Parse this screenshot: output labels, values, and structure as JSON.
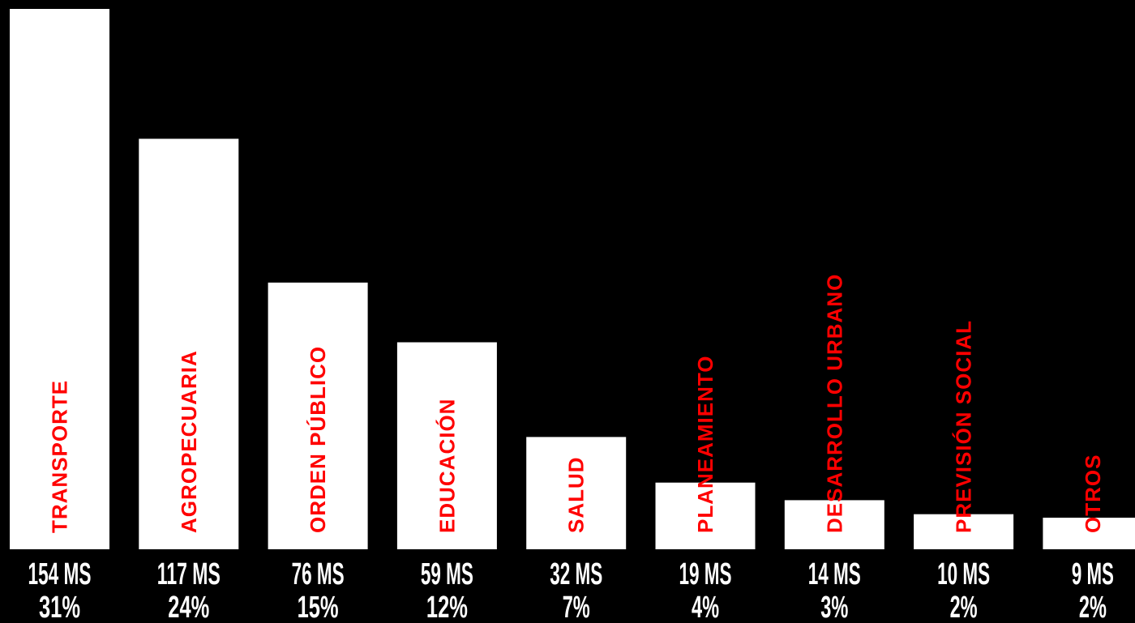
{
  "colors": {
    "background": "#000000",
    "bar": "#ffffff",
    "category_label": "#ff0000",
    "value_label": "#ffffff"
  },
  "chart_data": {
    "type": "bar",
    "title": "",
    "xlabel": "",
    "ylabel": "",
    "categories": [
      "TRANSPORTE",
      "AGROPECUARIA",
      "ORDEN PÚBLICO",
      "EDUCACIÓN",
      "SALUD",
      "PLANEAMIENTO",
      "DESARROLLO URBANO",
      "PREVISIÓN SOCIAL",
      "OTROS"
    ],
    "values": [
      154,
      117,
      76,
      59,
      32,
      19,
      14,
      10,
      9
    ],
    "value_labels": [
      "154 MS",
      "117 MS",
      "76 MS",
      "59 MS",
      "32 MS",
      "19 MS",
      "14 MS",
      "10 MS",
      "9 MS"
    ],
    "percent_labels": [
      "31%",
      "24%",
      "15%",
      "12%",
      "7%",
      "4%",
      "3%",
      "2%",
      "2%"
    ],
    "ylim": [
      0,
      154
    ],
    "grid": false,
    "legend": "none"
  }
}
